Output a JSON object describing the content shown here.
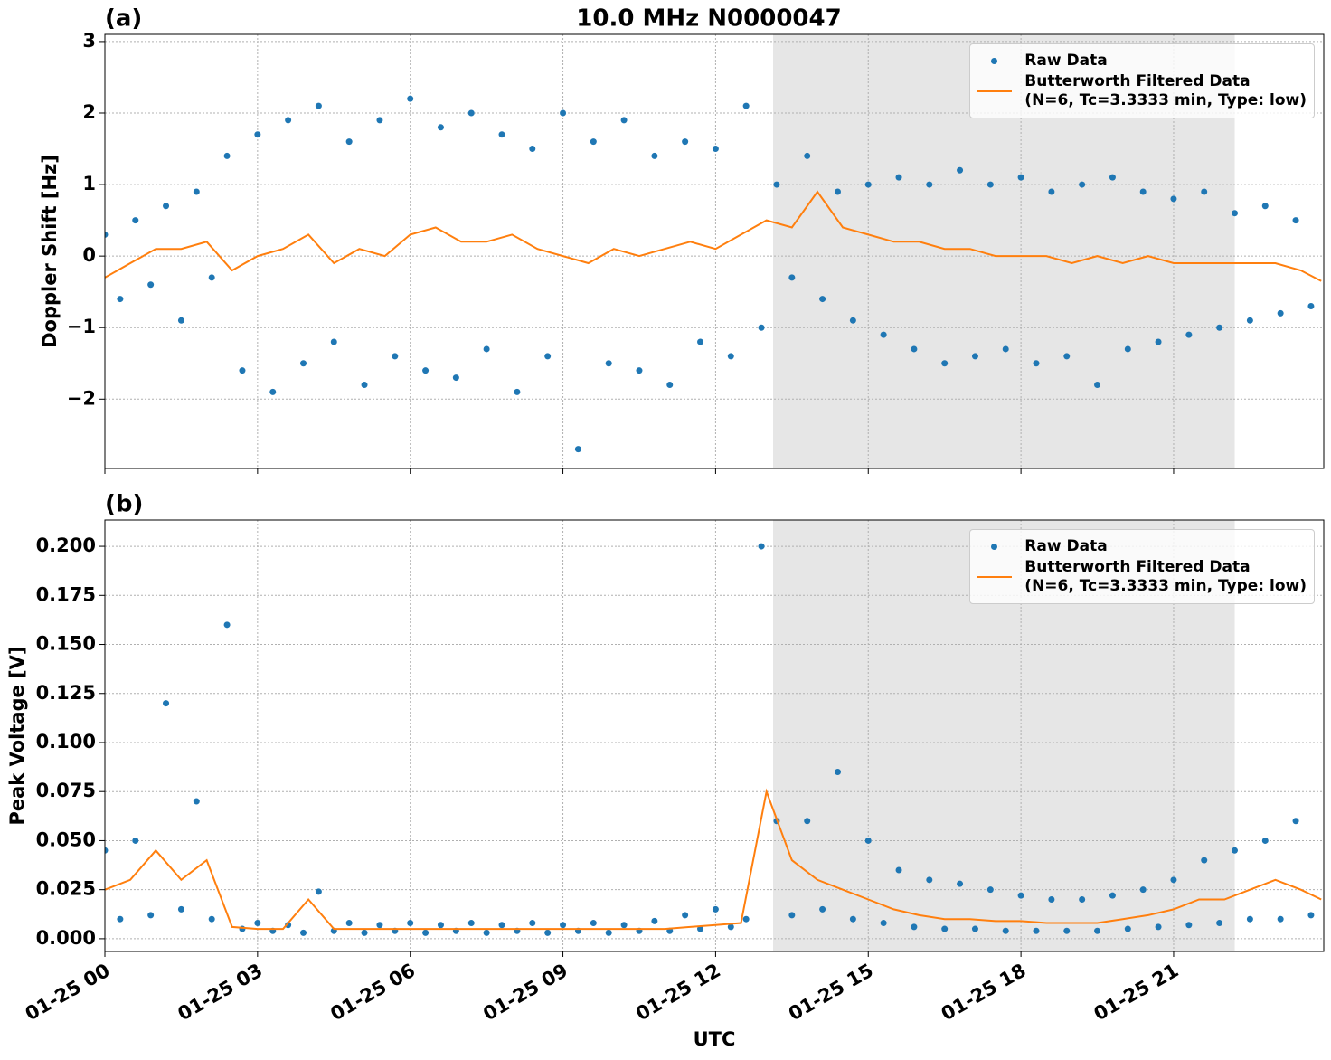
{
  "title": "10.0 MHz N0000047",
  "chart_data": [
    {
      "type": "line",
      "panel_label": "(a)",
      "ylabel": "Doppler Shift [Hz]",
      "xlim": [
        0,
        23.95
      ],
      "ylim": [
        -2.97,
        3.1
      ],
      "xticks": [
        0,
        3,
        6,
        9,
        12,
        15,
        18,
        21
      ],
      "yticks": [
        {
          "value": -2,
          "label": "−2"
        },
        {
          "value": -1,
          "label": "−1"
        },
        0,
        1,
        2,
        3
      ],
      "grid": true,
      "legend": "upper right",
      "shaded_span": [
        13.13,
        22.2
      ],
      "shade_color": "#e6e6e6",
      "series": [
        {
          "name": "Raw Data",
          "style": "markers",
          "color": "#1f77b4",
          "x": [
            0,
            0.3,
            0.6,
            0.9,
            1.2,
            1.5,
            1.8,
            2.1,
            2.4,
            2.7,
            3,
            3.3,
            3.6,
            3.9,
            4.2,
            4.5,
            4.8,
            5.1,
            5.4,
            5.7,
            6,
            6.3,
            6.6,
            6.9,
            7.2,
            7.5,
            7.8,
            8.1,
            8.4,
            8.7,
            9,
            9.3,
            9.6,
            9.9,
            10.2,
            10.5,
            10.8,
            11.1,
            11.4,
            11.7,
            12,
            12.3,
            12.6,
            12.9,
            13.2,
            13.5,
            13.8,
            14.1,
            14.4,
            14.7,
            15,
            15.3,
            15.6,
            15.9,
            16.2,
            16.5,
            16.8,
            17.1,
            17.4,
            17.7,
            18,
            18.3,
            18.6,
            18.9,
            19.2,
            19.5,
            19.8,
            20.1,
            20.4,
            20.7,
            21,
            21.3,
            21.6,
            21.9,
            22.2,
            22.5,
            22.8,
            23.1,
            23.4,
            23.7
          ],
          "values": [
            0.3,
            -0.6,
            0.5,
            -0.4,
            0.7,
            -0.9,
            0.9,
            -0.3,
            1.4,
            -1.6,
            1.7,
            -1.9,
            1.9,
            -1.5,
            2.1,
            -1.2,
            1.6,
            -1.8,
            1.9,
            -1.4,
            2.2,
            -1.6,
            1.8,
            -1.7,
            2.0,
            -1.3,
            1.7,
            -1.9,
            1.5,
            -1.4,
            2.0,
            -2.7,
            1.6,
            -1.5,
            1.9,
            -1.6,
            1.4,
            -1.8,
            1.6,
            -1.2,
            1.5,
            -1.4,
            2.1,
            -1.0,
            1.0,
            -0.3,
            1.4,
            -0.6,
            0.9,
            -0.9,
            1.0,
            -1.1,
            1.1,
            -1.3,
            1.0,
            -1.5,
            1.2,
            -1.4,
            1.0,
            -1.3,
            1.1,
            -1.5,
            0.9,
            -1.4,
            1.0,
            -1.8,
            1.1,
            -1.3,
            0.9,
            -1.2,
            0.8,
            -1.1,
            0.9,
            -1.0,
            0.6,
            -0.9,
            0.7,
            -0.8,
            0.5,
            -0.7
          ]
        },
        {
          "name": "Butterworth Filtered Data\n(N=6, Tc=3.3333 min, Type: low)",
          "style": "line",
          "color": "#ff7f0e",
          "x": [
            0,
            0.5,
            1,
            1.5,
            2,
            2.5,
            3,
            3.5,
            4,
            4.5,
            5,
            5.5,
            6,
            6.5,
            7,
            7.5,
            8,
            8.5,
            9,
            9.5,
            10,
            10.5,
            11,
            11.5,
            12,
            12.5,
            13,
            13.5,
            14,
            14.5,
            15,
            15.5,
            16,
            16.5,
            17,
            17.5,
            18,
            18.5,
            19,
            19.5,
            20,
            20.5,
            21,
            21.5,
            22,
            22.5,
            23,
            23.5,
            23.9
          ],
          "values": [
            -0.3,
            -0.1,
            0.1,
            0.1,
            0.2,
            -0.2,
            0.0,
            0.1,
            0.3,
            -0.1,
            0.1,
            0.0,
            0.3,
            0.4,
            0.2,
            0.2,
            0.3,
            0.1,
            0.0,
            -0.1,
            0.1,
            0.0,
            0.1,
            0.2,
            0.1,
            0.3,
            0.5,
            0.4,
            0.9,
            0.4,
            0.3,
            0.2,
            0.2,
            0.1,
            0.1,
            0.0,
            0.0,
            0.0,
            -0.1,
            0.0,
            -0.1,
            0.0,
            -0.1,
            -0.1,
            -0.1,
            -0.1,
            -0.1,
            -0.2,
            -0.35
          ]
        }
      ]
    },
    {
      "type": "line",
      "panel_label": "(b)",
      "ylabel": "Peak Voltage [V]",
      "xlabel": "UTC",
      "xlim": [
        0,
        23.95
      ],
      "ylim": [
        -0.0065,
        0.2134
      ],
      "xticks": [
        {
          "value": 0,
          "label": "01-25 00"
        },
        {
          "value": 3,
          "label": "01-25 03"
        },
        {
          "value": 6,
          "label": "01-25 06"
        },
        {
          "value": 9,
          "label": "01-25 09"
        },
        {
          "value": 12,
          "label": "01-25 12"
        },
        {
          "value": 15,
          "label": "01-25 15"
        },
        {
          "value": 18,
          "label": "01-25 18"
        },
        {
          "value": 21,
          "label": "01-25 21"
        }
      ],
      "yticks": [
        {
          "value": 0,
          "label": "0.000"
        },
        0.025,
        {
          "value": 0.05,
          "label": "0.050"
        },
        0.075,
        {
          "value": 0.1,
          "label": "0.100"
        },
        0.125,
        {
          "value": 0.15,
          "label": "0.150"
        },
        0.175,
        {
          "value": 0.2,
          "label": "0.200"
        }
      ],
      "grid": true,
      "legend": "upper right",
      "shaded_span": [
        13.13,
        22.2
      ],
      "shade_color": "#e6e6e6",
      "series": [
        {
          "name": "Raw Data",
          "style": "markers",
          "color": "#1f77b4",
          "x": [
            0,
            0.3,
            0.6,
            0.9,
            1.2,
            1.5,
            1.8,
            2.1,
            2.4,
            2.7,
            3,
            3.3,
            3.6,
            3.9,
            4.2,
            4.5,
            4.8,
            5.1,
            5.4,
            5.7,
            6,
            6.3,
            6.6,
            6.9,
            7.2,
            7.5,
            7.8,
            8.1,
            8.4,
            8.7,
            9,
            9.3,
            9.6,
            9.9,
            10.2,
            10.5,
            10.8,
            11.1,
            11.4,
            11.7,
            12,
            12.3,
            12.6,
            12.9,
            13.2,
            13.5,
            13.8,
            14.1,
            14.4,
            14.7,
            15,
            15.3,
            15.6,
            15.9,
            16.2,
            16.5,
            16.8,
            17.1,
            17.4,
            17.7,
            18,
            18.3,
            18.6,
            18.9,
            19.2,
            19.5,
            19.8,
            20.1,
            20.4,
            20.7,
            21,
            21.3,
            21.6,
            21.9,
            22.2,
            22.5,
            22.8,
            23.1,
            23.4,
            23.7
          ],
          "values": [
            0.045,
            0.01,
            0.05,
            0.012,
            0.12,
            0.015,
            0.07,
            0.01,
            0.16,
            0.005,
            0.008,
            0.004,
            0.007,
            0.003,
            0.024,
            0.004,
            0.008,
            0.003,
            0.007,
            0.004,
            0.008,
            0.003,
            0.007,
            0.004,
            0.008,
            0.003,
            0.007,
            0.004,
            0.008,
            0.003,
            0.007,
            0.004,
            0.008,
            0.003,
            0.007,
            0.004,
            0.009,
            0.004,
            0.012,
            0.005,
            0.015,
            0.006,
            0.01,
            0.2,
            0.06,
            0.012,
            0.06,
            0.015,
            0.085,
            0.01,
            0.05,
            0.008,
            0.035,
            0.006,
            0.03,
            0.005,
            0.028,
            0.005,
            0.025,
            0.004,
            0.022,
            0.004,
            0.02,
            0.004,
            0.02,
            0.004,
            0.022,
            0.005,
            0.025,
            0.006,
            0.03,
            0.007,
            0.04,
            0.008,
            0.045,
            0.01,
            0.05,
            0.01,
            0.06,
            0.012
          ]
        },
        {
          "name": "Butterworth Filtered Data\n(N=6, Tc=3.3333 min, Type: low)",
          "style": "line",
          "color": "#ff7f0e",
          "x": [
            0,
            0.5,
            1,
            1.5,
            2,
            2.5,
            3,
            3.5,
            4,
            4.5,
            5,
            5.5,
            6,
            6.5,
            7,
            7.5,
            8,
            8.5,
            9,
            9.5,
            10,
            10.5,
            11,
            11.5,
            12,
            12.5,
            13,
            13.5,
            14,
            14.5,
            15,
            15.5,
            16,
            16.5,
            17,
            17.5,
            18,
            18.5,
            19,
            19.5,
            20,
            20.5,
            21,
            21.5,
            22,
            22.5,
            23,
            23.5,
            23.9
          ],
          "values": [
            0.025,
            0.03,
            0.045,
            0.03,
            0.04,
            0.006,
            0.005,
            0.005,
            0.02,
            0.005,
            0.005,
            0.005,
            0.005,
            0.005,
            0.005,
            0.005,
            0.005,
            0.005,
            0.005,
            0.005,
            0.005,
            0.005,
            0.005,
            0.006,
            0.007,
            0.008,
            0.075,
            0.04,
            0.03,
            0.025,
            0.02,
            0.015,
            0.012,
            0.01,
            0.01,
            0.009,
            0.009,
            0.008,
            0.008,
            0.008,
            0.01,
            0.012,
            0.015,
            0.02,
            0.02,
            0.025,
            0.03,
            0.025,
            0.02
          ]
        }
      ]
    }
  ]
}
